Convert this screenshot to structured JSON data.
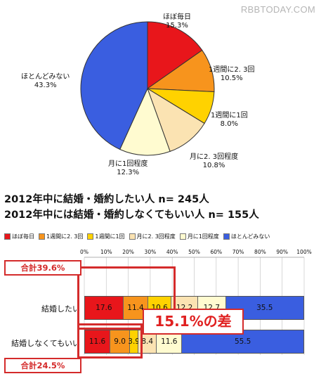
{
  "watermark": "RBBTODAY.COM",
  "headline": {
    "line1": "2012年中に結婚・婚約したい人 n= 245人",
    "line2": "2012年中には結婚・婚約しなくてもいい人 n= 155人"
  },
  "colors": {
    "daily": "#e8161b",
    "twice_weekly": "#f7941d",
    "once_weekly": "#ffd200",
    "twice_monthly": "#fbe3b2",
    "once_monthly": "#fffbd0",
    "rarely": "#3a5ee0",
    "accent": "#d42b2b"
  },
  "chart_data": [
    {
      "type": "pie",
      "slices": [
        {
          "name": "ほぼ毎日",
          "value": 15.3,
          "label": "15.3%"
        },
        {
          "name": "1週間に2. 3回",
          "value": 10.5,
          "label": "10.5%"
        },
        {
          "name": "1週間に1回",
          "value": 8.0,
          "label": "8.0%"
        },
        {
          "name": "月に2. 3回程度",
          "value": 10.8,
          "label": "10.8%"
        },
        {
          "name": "月に1回程度",
          "value": 12.3,
          "label": "12.3%"
        },
        {
          "name": "ほとんどみない",
          "value": 43.3,
          "label": "43.3%"
        }
      ]
    },
    {
      "type": "bar",
      "orientation": "horizontal-stacked",
      "legend": [
        "ほぼ毎日",
        "1週間に2. 3回",
        "1週間に1回",
        "月に2. 3回程度",
        "月に1回程度",
        "ほとんどみない"
      ],
      "x_ticks": [
        "0%",
        "10%",
        "20%",
        "30%",
        "40%",
        "50%",
        "60%",
        "70%",
        "80%",
        "90%",
        "100%"
      ],
      "xlim": [
        0,
        100
      ],
      "categories": [
        "結婚したい",
        "結婚しなくてもいい"
      ],
      "rows": [
        {
          "values": [
            17.6,
            11.4,
            10.6,
            12.2,
            12.7,
            35.5
          ],
          "labels": [
            "17.6",
            "11.4",
            "10.6",
            "12.2",
            "12.7",
            "35.5"
          ]
        },
        {
          "values": [
            11.6,
            9.0,
            3.9,
            8.4,
            11.6,
            55.5
          ],
          "labels": [
            "11.6",
            "9.0",
            "3.9",
            "8.4",
            "11.6",
            "55.5"
          ]
        }
      ],
      "annotations": {
        "total_top": "合計39.6%",
        "total_bottom": "合計24.5%",
        "difference": "15.1%の差"
      }
    }
  ]
}
